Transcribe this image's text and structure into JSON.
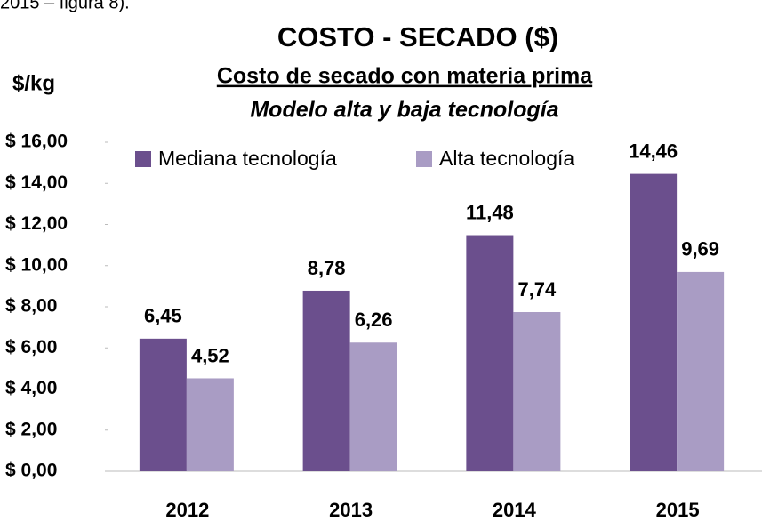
{
  "page_fragment": "2015 – figura 8).",
  "chart_data": {
    "type": "bar",
    "title": "COSTO - SECADO ($)",
    "subtitle": "Costo de secado con materia prima",
    "subtitle2": "Modelo alta y baja tecnología",
    "y_label": "$/kg",
    "categories": [
      "2012",
      "2013",
      "2014",
      "2015"
    ],
    "series": [
      {
        "name": "Mediana tecnología",
        "color": "#6b4f8d",
        "values": [
          6.45,
          8.78,
          11.48,
          14.46
        ],
        "value_labels": [
          "6,45",
          "8,78",
          "11,48",
          "14,46"
        ]
      },
      {
        "name": "Alta tecnología",
        "color": "#a99cc4",
        "values": [
          4.52,
          6.26,
          7.74,
          9.69
        ],
        "value_labels": [
          "4,52",
          "6,26",
          "7,74",
          "9,69"
        ]
      }
    ],
    "ylim": [
      0,
      16
    ],
    "yticks": [
      {
        "value": 0,
        "label": "$ 0,00"
      },
      {
        "value": 2,
        "label": "$ 2,00"
      },
      {
        "value": 4,
        "label": "$ 4,00"
      },
      {
        "value": 6,
        "label": "$ 6,00"
      },
      {
        "value": 8,
        "label": "$ 8,00"
      },
      {
        "value": 10,
        "label": "$ 10,00"
      },
      {
        "value": 12,
        "label": "$ 12,00"
      },
      {
        "value": 14,
        "label": "$ 14,00"
      },
      {
        "value": 16,
        "label": "$ 16,00"
      }
    ],
    "legend": "top"
  }
}
